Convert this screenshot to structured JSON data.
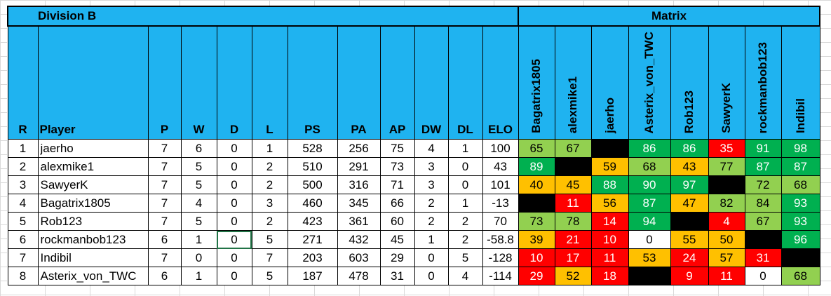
{
  "division_title": "Division B",
  "matrix_title": "Matrix",
  "headers": {
    "rank": "R",
    "player": "Player",
    "p": "P",
    "w": "W",
    "d": "D",
    "l": "L",
    "ps": "PS",
    "pa": "PA",
    "ap": "AP",
    "dw": "DW",
    "dl": "DL",
    "elo": "ELO"
  },
  "matrix_headers": [
    "Bagatrix1805",
    "alexmike1",
    "jaerho",
    "Asterix_von_TWC",
    "Rob123",
    "SawyerK",
    "rockmanbob123",
    "Indibil"
  ],
  "colors": {
    "header_blue": "#1fb3f0",
    "light_green": "#92d050",
    "dark_green": "#00b050",
    "orange": "#ffc000",
    "red": "#ff0000",
    "black": "#000000",
    "white": "#ffffff"
  },
  "rows": [
    {
      "r": "1",
      "player": "jaerho",
      "p": "7",
      "w": "6",
      "d": "0",
      "l": "1",
      "ps": "528",
      "pa": "256",
      "ap": "75",
      "dw": "4",
      "dl": "1",
      "elo": "100",
      "matrix": [
        {
          "v": "65",
          "c": "lg"
        },
        {
          "v": "67",
          "c": "lg"
        },
        {
          "v": "",
          "c": "bk"
        },
        {
          "v": "86",
          "c": "dg"
        },
        {
          "v": "86",
          "c": "dg"
        },
        {
          "v": "35",
          "c": "rd"
        },
        {
          "v": "91",
          "c": "dg"
        },
        {
          "v": "98",
          "c": "dg"
        }
      ]
    },
    {
      "r": "2",
      "player": "alexmike1",
      "p": "7",
      "w": "5",
      "d": "0",
      "l": "2",
      "ps": "510",
      "pa": "291",
      "ap": "73",
      "dw": "3",
      "dl": "0",
      "elo": "43",
      "matrix": [
        {
          "v": "89",
          "c": "dg"
        },
        {
          "v": "",
          "c": "bk"
        },
        {
          "v": "59",
          "c": "or"
        },
        {
          "v": "68",
          "c": "lg"
        },
        {
          "v": "43",
          "c": "or"
        },
        {
          "v": "77",
          "c": "lg"
        },
        {
          "v": "87",
          "c": "dg"
        },
        {
          "v": "87",
          "c": "dg"
        }
      ]
    },
    {
      "r": "3",
      "player": "SawyerK",
      "p": "7",
      "w": "5",
      "d": "0",
      "l": "2",
      "ps": "500",
      "pa": "316",
      "ap": "71",
      "dw": "3",
      "dl": "0",
      "elo": "101",
      "matrix": [
        {
          "v": "40",
          "c": "or"
        },
        {
          "v": "45",
          "c": "or"
        },
        {
          "v": "88",
          "c": "dg"
        },
        {
          "v": "90",
          "c": "dg"
        },
        {
          "v": "97",
          "c": "dg"
        },
        {
          "v": "",
          "c": "bk"
        },
        {
          "v": "72",
          "c": "lg"
        },
        {
          "v": "68",
          "c": "lg"
        }
      ]
    },
    {
      "r": "4",
      "player": "Bagatrix1805",
      "p": "7",
      "w": "4",
      "d": "0",
      "l": "3",
      "ps": "460",
      "pa": "345",
      "ap": "66",
      "dw": "2",
      "dl": "1",
      "elo": "-13",
      "matrix": [
        {
          "v": "",
          "c": "bk"
        },
        {
          "v": "11",
          "c": "rd"
        },
        {
          "v": "56",
          "c": "or"
        },
        {
          "v": "87",
          "c": "dg"
        },
        {
          "v": "47",
          "c": "or"
        },
        {
          "v": "82",
          "c": "lg"
        },
        {
          "v": "84",
          "c": "lg"
        },
        {
          "v": "93",
          "c": "dg"
        }
      ]
    },
    {
      "r": "5",
      "player": "Rob123",
      "p": "7",
      "w": "5",
      "d": "0",
      "l": "2",
      "ps": "423",
      "pa": "361",
      "ap": "60",
      "dw": "2",
      "dl": "2",
      "elo": "70",
      "matrix": [
        {
          "v": "73",
          "c": "lg"
        },
        {
          "v": "78",
          "c": "lg"
        },
        {
          "v": "14",
          "c": "rd"
        },
        {
          "v": "94",
          "c": "dg"
        },
        {
          "v": "",
          "c": "bk"
        },
        {
          "v": "4",
          "c": "rd"
        },
        {
          "v": "67",
          "c": "lg"
        },
        {
          "v": "93",
          "c": "dg"
        }
      ]
    },
    {
      "r": "6",
      "player": "rockmanbob123",
      "p": "6",
      "w": "1",
      "d": "0",
      "l": "5",
      "ps": "271",
      "pa": "432",
      "ap": "45",
      "dw": "1",
      "dl": "2",
      "elo": "-58.8",
      "matrix": [
        {
          "v": "39",
          "c": "or"
        },
        {
          "v": "21",
          "c": "rd"
        },
        {
          "v": "10",
          "c": "rd"
        },
        {
          "v": "0",
          "c": "wh"
        },
        {
          "v": "55",
          "c": "or"
        },
        {
          "v": "50",
          "c": "or"
        },
        {
          "v": "",
          "c": "bk"
        },
        {
          "v": "96",
          "c": "dg"
        }
      ]
    },
    {
      "r": "7",
      "player": "Indibil",
      "p": "7",
      "w": "0",
      "d": "0",
      "l": "7",
      "ps": "203",
      "pa": "603",
      "ap": "29",
      "dw": "0",
      "dl": "5",
      "elo": "-128",
      "matrix": [
        {
          "v": "10",
          "c": "rd"
        },
        {
          "v": "17",
          "c": "rd"
        },
        {
          "v": "11",
          "c": "rd"
        },
        {
          "v": "53",
          "c": "or"
        },
        {
          "v": "24",
          "c": "rd"
        },
        {
          "v": "57",
          "c": "or"
        },
        {
          "v": "31",
          "c": "rd"
        },
        {
          "v": "",
          "c": "bk"
        }
      ]
    },
    {
      "r": "8",
      "player": "Asterix_von_TWC",
      "p": "6",
      "w": "1",
      "d": "0",
      "l": "5",
      "ps": "187",
      "pa": "478",
      "ap": "31",
      "dw": "0",
      "dl": "4",
      "elo": "-114",
      "matrix": [
        {
          "v": "29",
          "c": "rd"
        },
        {
          "v": "52",
          "c": "or"
        },
        {
          "v": "18",
          "c": "rd"
        },
        {
          "v": "",
          "c": "bk"
        },
        {
          "v": "9",
          "c": "rd"
        },
        {
          "v": "11",
          "c": "rd"
        },
        {
          "v": "0",
          "c": "wh"
        },
        {
          "v": "68",
          "c": "lg"
        }
      ]
    }
  ]
}
